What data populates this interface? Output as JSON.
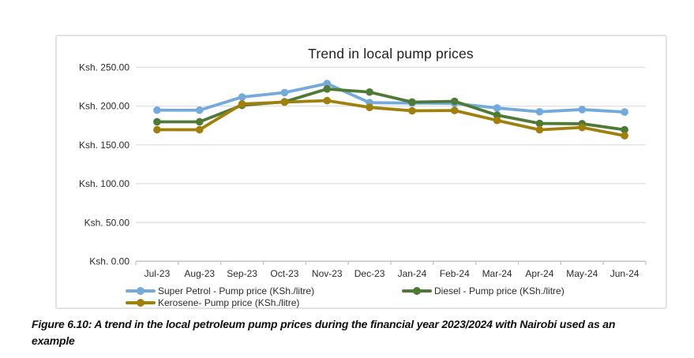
{
  "figure": {
    "caption": "Figure 6.10: A trend in the local petroleum pump prices during the financial year 2023/2024 with Nairobi used as an example"
  },
  "chart_data": {
    "type": "line",
    "title": "Trend in local pump prices",
    "x": [
      "Jul-23",
      "Aug-23",
      "Sep-23",
      "Oct-23",
      "Nov-23",
      "Dec-23",
      "Jan-24",
      "Feb-24",
      "Mar-24",
      "Apr-24",
      "May-24",
      "Jun-24"
    ],
    "series": [
      {
        "name": "Super Petrol - Pump price (KSh./litre)",
        "color": "#74AADB",
        "values": [
          194.7,
          194.7,
          211.6,
          217.4,
          229.0,
          204.4,
          203.8,
          203.4,
          197.5,
          192.6,
          195.5,
          192.3
        ]
      },
      {
        "name": "Diesel - Pump price (KSh./litre)",
        "color": "#4F7A35",
        "values": [
          179.7,
          179.7,
          201.0,
          205.5,
          222.0,
          218.0,
          205.1,
          206.1,
          188.3,
          177.6,
          177.2,
          169.5
        ]
      },
      {
        "name": "Kerosene- Pump price (KSh./litre)",
        "color": "#A0800A",
        "values": [
          169.5,
          169.5,
          202.6,
          205.1,
          207.0,
          198.3,
          193.9,
          194.3,
          181.5,
          169.4,
          172.4,
          161.8
        ]
      }
    ],
    "y_ticks": [
      {
        "value": 250,
        "label": "Ksh. 250.00"
      },
      {
        "value": 200,
        "label": "Ksh. 200.00"
      },
      {
        "value": 150,
        "label": "Ksh. 150.00"
      },
      {
        "value": 100,
        "label": "Ksh. 100.00"
      },
      {
        "value": 50,
        "label": "Ksh. 50.00"
      },
      {
        "value": 0,
        "label": "Ksh. 0.00"
      }
    ],
    "ylim": [
      0,
      250
    ],
    "grid": true,
    "legend_position": "bottom",
    "colors": {
      "gridline": "#dedede",
      "axis": "#bfbfbf",
      "tick_text": "#2b2b2b",
      "title_text": "#1f1f1f"
    }
  }
}
